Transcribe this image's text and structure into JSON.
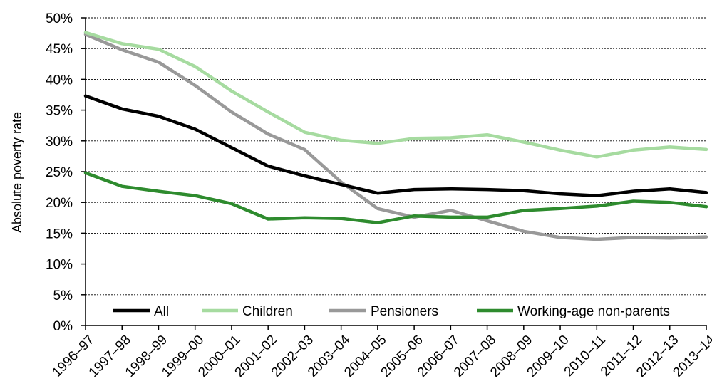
{
  "chart_data": {
    "type": "line",
    "title": "",
    "xlabel": "",
    "ylabel": "Absolute poverty rate",
    "categories": [
      "1996–97",
      "1997–98",
      "1998–99",
      "1999–00",
      "2000–01",
      "2001–02",
      "2002–03",
      "2003–04",
      "2004–05",
      "2005–06",
      "2006–07",
      "2007–08",
      "2008–09",
      "2009–10",
      "2010–11",
      "2011–12",
      "2012–13",
      "2013–14"
    ],
    "ylim": [
      0,
      0.5
    ],
    "yticks": [
      0,
      0.05,
      0.1,
      0.15,
      0.2,
      0.25,
      0.3,
      0.35,
      0.4,
      0.45,
      0.5
    ],
    "ytick_labels": [
      "0%",
      "5%",
      "10%",
      "15%",
      "20%",
      "25%",
      "30%",
      "35%",
      "40%",
      "45%",
      "50%"
    ],
    "grid": "horizontal-dotted",
    "legend_position": "bottom-inside",
    "series": [
      {
        "name": "All",
        "color": "#000000",
        "values": [
          0.373,
          0.352,
          0.34,
          0.319,
          0.289,
          0.259,
          0.243,
          0.229,
          0.215,
          0.221,
          0.222,
          0.221,
          0.219,
          0.214,
          0.211,
          0.218,
          0.222,
          0.216
        ]
      },
      {
        "name": "Children",
        "color": "#a6dba0",
        "values": [
          0.476,
          0.458,
          0.449,
          0.421,
          0.381,
          0.347,
          0.314,
          0.301,
          0.296,
          0.304,
          0.305,
          0.31,
          0.298,
          0.285,
          0.274,
          0.285,
          0.29,
          0.286
        ]
      },
      {
        "name": "Pensioners",
        "color": "#999999",
        "values": [
          0.473,
          0.448,
          0.428,
          0.39,
          0.347,
          0.311,
          0.286,
          0.233,
          0.19,
          0.176,
          0.187,
          0.17,
          0.153,
          0.143,
          0.14,
          0.143,
          0.142,
          0.144
        ]
      },
      {
        "name": "Working-age non-parents",
        "color": "#2e8b2e",
        "values": [
          0.248,
          0.226,
          0.218,
          0.211,
          0.198,
          0.173,
          0.175,
          0.174,
          0.167,
          0.178,
          0.176,
          0.176,
          0.187,
          0.19,
          0.194,
          0.202,
          0.2,
          0.193
        ]
      }
    ]
  }
}
